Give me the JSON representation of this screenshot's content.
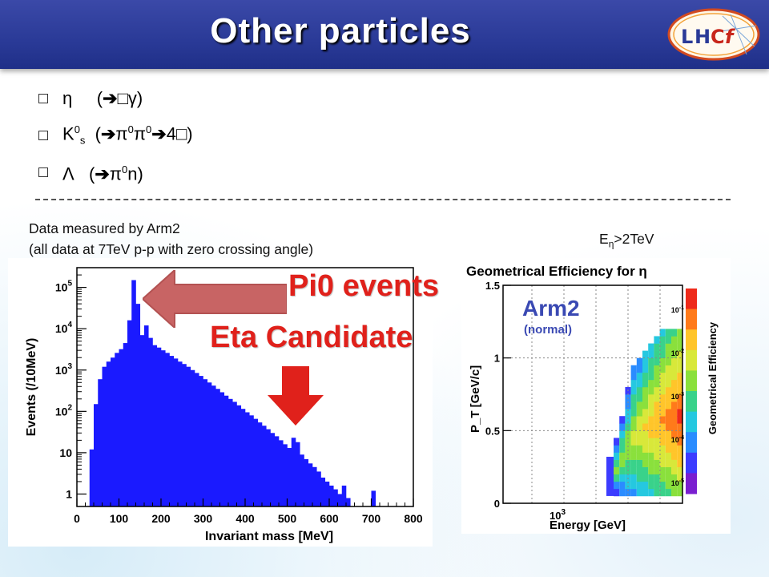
{
  "title": "Other particles",
  "bullets": [
    {
      "text": "η     (➔ \u0000γ)",
      "html": "η&nbsp;&nbsp;&nbsp;&nbsp;&nbsp;(<b>&#10132;</b>&#9633;γ)"
    },
    {
      "text": "K0s (➔π0π0➔4\u0000)",
      "html": "K<sup>0</sup><sub>s</sub>&nbsp;&nbsp;(<b>&#10132;</b>π<sup>0</sup>π<sup>0</sup><b>&#10132;</b>4&#9633;)"
    },
    {
      "text": "Λ  (➔π0n)",
      "html": "Λ&nbsp;&nbsp;&nbsp;(<b>&#10132;</b>π<sup>0</sup>n)"
    }
  ],
  "note": {
    "line1": "Data measured by Arm2",
    "line2": "(all data at 7TeV p-p with zero crossing angle)"
  },
  "energy_cut": {
    "prefix": "E",
    "sub": "η",
    "suffix": ">2TeV"
  },
  "annotations": {
    "pi0": "Pi0 events",
    "eta": "Eta Candidate"
  },
  "colors": {
    "header": "#2a3a97",
    "hist": "#1a1aff",
    "annotation": "#e0211b",
    "arrow_pi0": "#c86464"
  },
  "chart_data": [
    {
      "type": "bar",
      "title": "",
      "xlabel": "Invariant mass [MeV]",
      "ylabel": "Events (/10MeV)",
      "log_y": true,
      "xlim": [
        0,
        800
      ],
      "ylim": [
        0.5,
        300000
      ],
      "x_ticks": [
        "0",
        "100",
        "200",
        "300",
        "400",
        "500",
        "600",
        "700",
        "800"
      ],
      "y_ticks": [
        "1",
        "10",
        "10^2",
        "10^3",
        "10^4",
        "10^5"
      ],
      "bin_width": 10,
      "bin_lows": [
        0,
        10,
        20,
        30,
        40,
        50,
        60,
        70,
        80,
        90,
        100,
        110,
        120,
        130,
        140,
        150,
        160,
        170,
        180,
        190,
        200,
        210,
        220,
        230,
        240,
        250,
        260,
        270,
        280,
        290,
        300,
        310,
        320,
        330,
        340,
        350,
        360,
        370,
        380,
        390,
        400,
        410,
        420,
        430,
        440,
        450,
        460,
        470,
        480,
        490,
        500,
        510,
        520,
        530,
        540,
        550,
        560,
        570,
        580,
        590,
        600,
        610,
        620,
        630,
        640,
        650,
        660,
        670,
        680,
        690,
        700,
        710,
        720,
        730,
        740,
        750,
        760,
        770,
        780,
        790
      ],
      "values": [
        0,
        0,
        0,
        12,
        150,
        600,
        1200,
        1600,
        2000,
        2600,
        3200,
        4500,
        16000,
        150000,
        40000,
        7000,
        12000,
        6000,
        4000,
        3500,
        3000,
        2600,
        2200,
        1900,
        1600,
        1400,
        1200,
        1000,
        850,
        720,
        600,
        500,
        420,
        350,
        290,
        240,
        200,
        170,
        140,
        115,
        95,
        80,
        66,
        54,
        45,
        37,
        30,
        25,
        20,
        16,
        13,
        23,
        18,
        9,
        7,
        5.5,
        4.5,
        3.5,
        2.5,
        2,
        1.6,
        1.3,
        1.0,
        1.6,
        0.8,
        0,
        0,
        0,
        0,
        0,
        1.2,
        0,
        0,
        0,
        0,
        0,
        0,
        0,
        0,
        0
      ]
    },
    {
      "type": "heatmap",
      "title": "Geometrical Efficiency for η",
      "xlabel": "Energy [GeV]",
      "ylabel": "P_T [GeV/c]",
      "zlabel": "Geometrical Efficiency",
      "log_x": true,
      "log_z": true,
      "ylim": [
        0,
        1.5
      ],
      "y_ticks": [
        "0",
        "0.5",
        "1",
        "1.5"
      ],
      "x_ticks": [
        "10^3"
      ],
      "z_ticks": [
        "10^-5",
        "10^-4",
        "10^-3",
        "10^-2",
        "10^-1"
      ],
      "legend_text": [
        "Arm2",
        "(normal)"
      ]
    }
  ]
}
